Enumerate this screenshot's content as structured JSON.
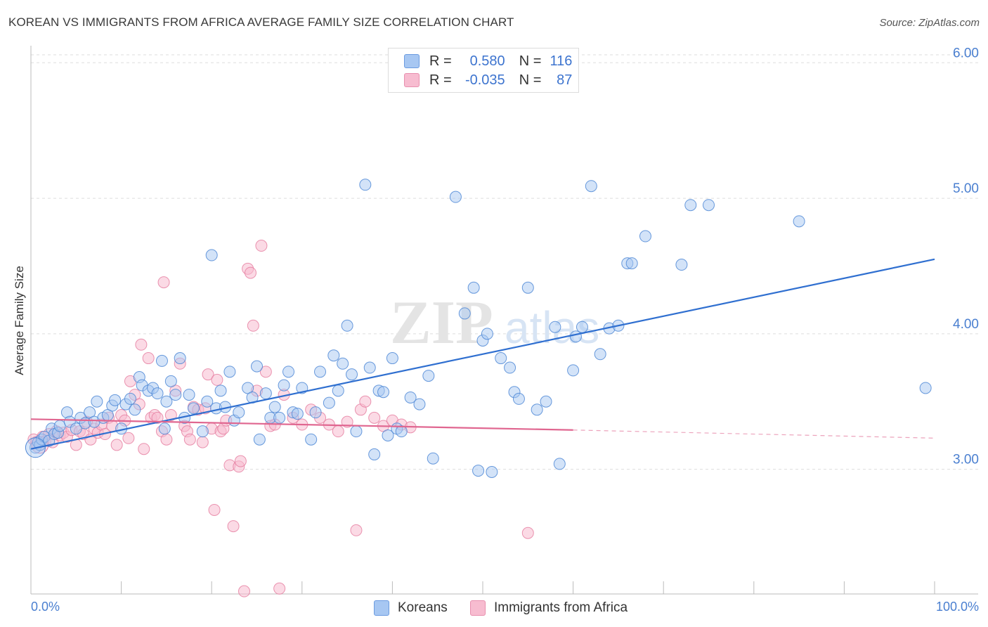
{
  "header": {
    "title": "KOREAN VS IMMIGRANTS FROM AFRICA AVERAGE FAMILY SIZE CORRELATION CHART",
    "source": "Source: ZipAtlas.com"
  },
  "legend": {
    "r_label": "R =",
    "n_label": "N =",
    "rows": [
      {
        "r": "0.580",
        "n": "116",
        "color": "#a7c7f2"
      },
      {
        "r": "-0.035",
        "n": "87",
        "color": "#f7bcd0"
      }
    ]
  },
  "watermark": {
    "zip": "ZIP",
    "atlas": "atlas"
  },
  "colors": {
    "korean_fill": "#a7c7f2",
    "korean_stroke": "#4f88d6",
    "korean_line": "#2f6fd0",
    "africa_fill": "#f7bcd0",
    "africa_stroke": "#e57a9e",
    "africa_line": "#e06690",
    "tick_text": "#4a7fd0"
  },
  "chart_data": {
    "type": "scatter",
    "title": "KOREAN VS IMMIGRANTS FROM AFRICA AVERAGE FAMILY SIZE CORRELATION CHART",
    "xlabel": "",
    "ylabel": "Average Family Size",
    "x_tick_labels": [
      "0.0%",
      "100.0%"
    ],
    "y_tick_labels": [
      "3.00",
      "4.00",
      "5.00",
      "6.00"
    ],
    "y_ticks": [
      3.0,
      4.0,
      5.0,
      6.0
    ],
    "xlim": [
      0,
      100
    ],
    "ylim": [
      2.08,
      6.1
    ],
    "grid": true,
    "legend_position": "top-center",
    "series": [
      {
        "name": "Koreans",
        "r": 0.58,
        "n": 116,
        "trend": {
          "x": [
            0,
            100
          ],
          "y": [
            3.15,
            4.55
          ]
        },
        "points": [
          [
            0.5,
            3.16
          ],
          [
            0.8,
            3.2
          ],
          [
            1,
            3.18
          ],
          [
            1.2,
            3.22
          ],
          [
            1.5,
            3.24
          ],
          [
            2,
            3.21
          ],
          [
            2.3,
            3.3
          ],
          [
            2.6,
            3.26
          ],
          [
            3,
            3.27
          ],
          [
            3.2,
            3.32
          ],
          [
            4,
            3.42
          ],
          [
            4.3,
            3.35
          ],
          [
            5,
            3.3
          ],
          [
            5.5,
            3.38
          ],
          [
            6,
            3.34
          ],
          [
            6.5,
            3.42
          ],
          [
            7,
            3.35
          ],
          [
            7.3,
            3.5
          ],
          [
            8,
            3.38
          ],
          [
            8.5,
            3.4
          ],
          [
            9,
            3.47
          ],
          [
            9.3,
            3.51
          ],
          [
            10,
            3.3
          ],
          [
            10.5,
            3.48
          ],
          [
            11,
            3.52
          ],
          [
            11.5,
            3.44
          ],
          [
            12,
            3.68
          ],
          [
            12.3,
            3.62
          ],
          [
            13,
            3.58
          ],
          [
            13.5,
            3.6
          ],
          [
            14,
            3.56
          ],
          [
            14.5,
            3.8
          ],
          [
            14.8,
            3.3
          ],
          [
            15,
            3.5
          ],
          [
            15.5,
            3.65
          ],
          [
            16,
            3.55
          ],
          [
            16.5,
            3.82
          ],
          [
            17,
            3.38
          ],
          [
            17.5,
            3.55
          ],
          [
            18,
            3.45
          ],
          [
            19,
            3.28
          ],
          [
            19.5,
            3.5
          ],
          [
            20,
            4.58
          ],
          [
            20.5,
            3.45
          ],
          [
            21,
            3.58
          ],
          [
            21.5,
            3.46
          ],
          [
            22,
            3.72
          ],
          [
            22.5,
            3.36
          ],
          [
            23,
            3.42
          ],
          [
            24,
            3.6
          ],
          [
            24.5,
            3.53
          ],
          [
            25,
            3.76
          ],
          [
            25.3,
            3.22
          ],
          [
            26,
            3.56
          ],
          [
            26.5,
            3.38
          ],
          [
            27,
            3.46
          ],
          [
            27.5,
            3.38
          ],
          [
            28,
            3.62
          ],
          [
            28.5,
            3.72
          ],
          [
            29,
            3.42
          ],
          [
            29.5,
            3.41
          ],
          [
            30,
            3.6
          ],
          [
            31,
            3.22
          ],
          [
            31.5,
            3.42
          ],
          [
            32,
            3.72
          ],
          [
            33,
            3.49
          ],
          [
            33.5,
            3.84
          ],
          [
            34,
            3.58
          ],
          [
            34.5,
            3.78
          ],
          [
            35,
            4.06
          ],
          [
            35.5,
            3.7
          ],
          [
            36,
            3.28
          ],
          [
            37,
            5.1
          ],
          [
            37.5,
            3.75
          ],
          [
            38,
            3.11
          ],
          [
            38.5,
            3.58
          ],
          [
            39,
            3.57
          ],
          [
            39.5,
            3.25
          ],
          [
            40,
            3.82
          ],
          [
            40.5,
            3.3
          ],
          [
            41,
            3.28
          ],
          [
            42,
            3.53
          ],
          [
            43,
            3.48
          ],
          [
            44,
            3.69
          ],
          [
            44.5,
            3.08
          ],
          [
            47,
            5.01
          ],
          [
            48,
            4.15
          ],
          [
            49,
            4.34
          ],
          [
            49.5,
            2.99
          ],
          [
            50,
            3.95
          ],
          [
            50.5,
            4.0
          ],
          [
            51,
            2.98
          ],
          [
            52,
            3.82
          ],
          [
            53,
            3.75
          ],
          [
            53.5,
            3.57
          ],
          [
            54,
            3.52
          ],
          [
            55,
            4.34
          ],
          [
            56,
            3.44
          ],
          [
            57,
            3.5
          ],
          [
            58,
            4.05
          ],
          [
            58.5,
            3.04
          ],
          [
            60,
            3.73
          ],
          [
            60.3,
            3.98
          ],
          [
            61,
            4.05
          ],
          [
            62,
            5.09
          ],
          [
            63,
            3.85
          ],
          [
            64,
            4.04
          ],
          [
            65,
            4.06
          ],
          [
            66,
            4.52
          ],
          [
            66.5,
            4.52
          ],
          [
            68,
            4.72
          ],
          [
            72,
            4.51
          ],
          [
            73,
            4.95
          ],
          [
            75,
            4.95
          ],
          [
            85,
            4.83
          ],
          [
            99,
            3.6
          ]
        ]
      },
      {
        "name": "Immigrants from Africa",
        "r": -0.035,
        "n": 87,
        "trend": {
          "x": [
            0,
            60
          ],
          "y": [
            3.37,
            3.29
          ]
        },
        "trend_dashed": {
          "x": [
            60,
            100
          ],
          "y": [
            3.29,
            3.23
          ]
        },
        "points": [
          [
            0.3,
            3.22
          ],
          [
            0.6,
            3.2
          ],
          [
            1,
            3.18
          ],
          [
            1.3,
            3.24
          ],
          [
            1.6,
            3.21
          ],
          [
            2,
            3.26
          ],
          [
            2.4,
            3.2
          ],
          [
            2.8,
            3.28
          ],
          [
            3.2,
            3.25
          ],
          [
            3.6,
            3.27
          ],
          [
            4,
            3.24
          ],
          [
            4.5,
            3.29
          ],
          [
            5,
            3.18
          ],
          [
            5.4,
            3.28
          ],
          [
            5.8,
            3.26
          ],
          [
            6.2,
            3.35
          ],
          [
            6.6,
            3.22
          ],
          [
            7,
            3.3
          ],
          [
            7.4,
            3.27
          ],
          [
            7.8,
            3.33
          ],
          [
            8.2,
            3.26
          ],
          [
            8.6,
            3.38
          ],
          [
            9,
            3.32
          ],
          [
            9.5,
            3.18
          ],
          [
            10,
            3.4
          ],
          [
            10.4,
            3.36
          ],
          [
            10.8,
            3.23
          ],
          [
            11,
            3.65
          ],
          [
            11.5,
            3.55
          ],
          [
            12,
            3.48
          ],
          [
            12.2,
            3.92
          ],
          [
            12.5,
            3.15
          ],
          [
            13,
            3.82
          ],
          [
            13.3,
            3.38
          ],
          [
            13.7,
            3.4
          ],
          [
            14,
            3.38
          ],
          [
            14.5,
            3.28
          ],
          [
            14.7,
            4.38
          ],
          [
            15,
            3.22
          ],
          [
            15.5,
            3.4
          ],
          [
            16,
            3.58
          ],
          [
            16.5,
            3.78
          ],
          [
            17,
            3.32
          ],
          [
            17.3,
            3.28
          ],
          [
            17.6,
            3.22
          ],
          [
            18,
            3.46
          ],
          [
            18.5,
            3.44
          ],
          [
            19,
            3.2
          ],
          [
            19.3,
            3.45
          ],
          [
            19.6,
            3.7
          ],
          [
            20,
            3.3
          ],
          [
            20.3,
            2.7
          ],
          [
            20.6,
            3.66
          ],
          [
            21,
            3.28
          ],
          [
            21.3,
            3.3
          ],
          [
            21.6,
            3.36
          ],
          [
            22,
            3.03
          ],
          [
            22.4,
            2.58
          ],
          [
            23,
            3.02
          ],
          [
            23.2,
            3.06
          ],
          [
            23.6,
            2.1
          ],
          [
            24,
            4.48
          ],
          [
            24.3,
            4.45
          ],
          [
            24.6,
            4.06
          ],
          [
            25,
            3.58
          ],
          [
            25.5,
            4.65
          ],
          [
            26,
            3.72
          ],
          [
            26.5,
            3.32
          ],
          [
            27,
            3.33
          ],
          [
            27.5,
            2.12
          ],
          [
            28,
            3.55
          ],
          [
            29,
            3.38
          ],
          [
            30,
            3.33
          ],
          [
            31,
            3.44
          ],
          [
            32,
            3.38
          ],
          [
            33,
            3.33
          ],
          [
            34,
            3.28
          ],
          [
            35,
            3.35
          ],
          [
            36,
            2.55
          ],
          [
            36.5,
            3.44
          ],
          [
            37,
            3.5
          ],
          [
            38,
            3.38
          ],
          [
            39,
            3.32
          ],
          [
            40,
            3.36
          ],
          [
            41,
            3.33
          ],
          [
            42,
            3.31
          ],
          [
            55,
            2.53
          ]
        ]
      }
    ]
  },
  "bottom_legend": [
    {
      "label": "Koreans",
      "color": "#a7c7f2"
    },
    {
      "label": "Immigrants from Africa",
      "color": "#f7bcd0"
    }
  ]
}
